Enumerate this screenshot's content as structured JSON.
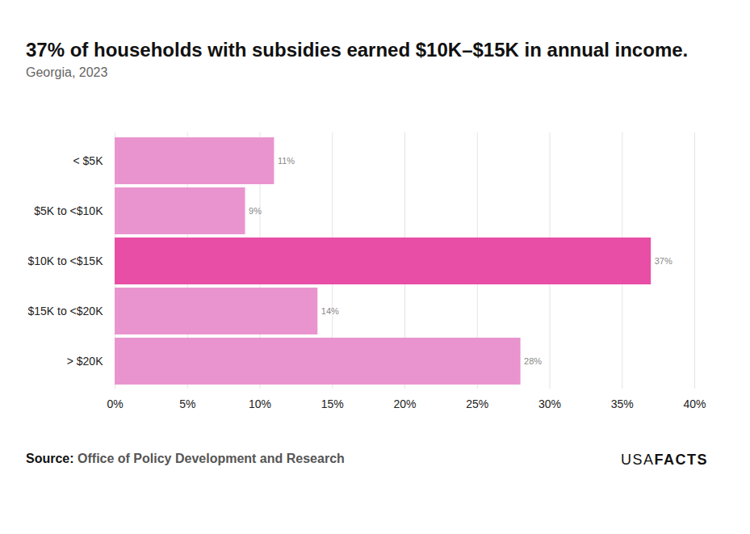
{
  "chart_data": {
    "type": "bar",
    "orientation": "horizontal",
    "title": "37% of households with subsidies earned $10K–$15K in annual income.",
    "subtitle": "Georgia, 2023",
    "categories": [
      "< $5K",
      "$5K to <$10K",
      "$10K to <$15K",
      "$15K to <$20K",
      "> $20K"
    ],
    "values": [
      11,
      9,
      37,
      14,
      28
    ],
    "value_labels": [
      "11%",
      "9%",
      "37%",
      "14%",
      "28%"
    ],
    "colors": [
      "#ea94cf",
      "#ea94cf",
      "#e84ea6",
      "#ea94cf",
      "#ea94cf"
    ],
    "xlim": [
      0,
      40
    ],
    "xticks": [
      {
        "value": 0,
        "label": "0%"
      },
      {
        "value": 5,
        "label": "5%"
      },
      {
        "value": 10,
        "label": "10%"
      },
      {
        "value": 15,
        "label": "15%"
      },
      {
        "value": 20,
        "label": "20%"
      },
      {
        "value": 25,
        "label": "25%"
      },
      {
        "value": 30,
        "label": "30%"
      },
      {
        "value": 35,
        "label": "35%"
      },
      {
        "value": 40,
        "label": "40%"
      }
    ],
    "grid": true,
    "data_labels": true,
    "source_label": "Source:",
    "source": "Office of Policy Development and Research",
    "logo": [
      "USA",
      "FACTS"
    ]
  }
}
